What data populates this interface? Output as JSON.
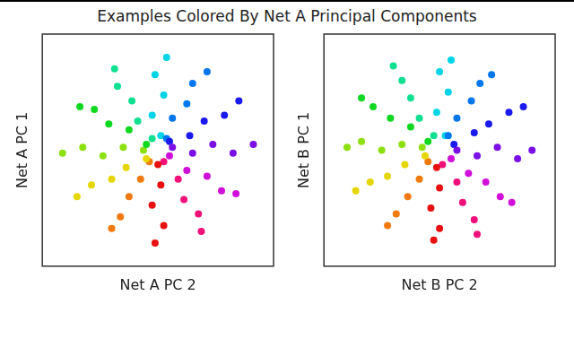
{
  "title": "Examples Colored By Net A Principal Components",
  "chart_data": [
    {
      "type": "scatter",
      "x_label": "Net A PC 2",
      "y_label": "Net A PC 1",
      "xlim": [
        -4,
        4
      ],
      "ylim": [
        -4,
        4
      ],
      "tick_labels": false,
      "grid": false,
      "marker": "circle",
      "x": [
        0.1,
        -0.2,
        0.2,
        -0.1,
        0.3,
        0.3,
        0.5,
        1.0,
        1.2,
        1.7,
        0.4,
        1.1,
        1.6,
        2.3,
        2.8,
        0.5,
        1.2,
        1.9,
        2.6,
        3.3,
        0.4,
        1.0,
        1.7,
        2.2,
        2.7,
        0.2,
        0.7,
        0.9,
        1.4,
        1.5,
        0,
        0.1,
        -0.2,
        0.2,
        -0.1,
        -0.3,
        -0.6,
        -1.0,
        -1.3,
        -1.6,
        -0.4,
        -1.1,
        -1.6,
        -2.3,
        -2.8,
        -0.5,
        -1.2,
        -1.9,
        -2.6,
        -3.3,
        -0.4,
        -1.0,
        -1.7,
        -2.2,
        -2.7,
        -0.2,
        -0.7,
        -0.9,
        -1.4,
        -1.5
      ],
      "values": [
        0.5,
        1.2,
        1.9,
        2.6,
        3.2,
        0.4,
        1.1,
        1.6,
        2.3,
        2.7,
        0.3,
        0.5,
        1.0,
        1.2,
        1.7,
        0.1,
        -0.1,
        0.2,
        -0.1,
        0.2,
        -0.2,
        -0.7,
        -0.9,
        -1.4,
        -1.5,
        -0.4,
        -1.0,
        -1.7,
        -2.2,
        -2.8,
        -0.5,
        -1.2,
        -1.9,
        -2.6,
        -3.2,
        -0.4,
        -1.0,
        -1.6,
        -2.3,
        -2.7,
        -0.3,
        -0.6,
        -1.0,
        -1.2,
        -1.6,
        0,
        0.1,
        -0.2,
        0.1,
        -0.1,
        0.2,
        0.7,
        0.9,
        1.4,
        1.5,
        0.4,
        1.0,
        1.7,
        2.2,
        2.8
      ],
      "colors": [
        "#00d4e6",
        "#00d4e6",
        "#00d4e6",
        "#00d4e6",
        "#00d4e6",
        "#0077ee",
        "#0077ee",
        "#0077ee",
        "#0077ee",
        "#0077ee",
        "#1a1aee",
        "#1a1aee",
        "#1a1aee",
        "#1a1aee",
        "#1a1aee",
        "#7a10e6",
        "#7a10e6",
        "#7a10e6",
        "#7a10e6",
        "#7a10e6",
        "#d010d8",
        "#d010d8",
        "#d010d8",
        "#d010d8",
        "#d010d8",
        "#f0107a",
        "#f0107a",
        "#f0107a",
        "#f0107a",
        "#f0107a",
        "#e81010",
        "#e81010",
        "#e81010",
        "#e81010",
        "#e81010",
        "#f07a10",
        "#f07a10",
        "#f07a10",
        "#f07a10",
        "#f07a10",
        "#e6d600",
        "#e6d600",
        "#e6d600",
        "#e6d600",
        "#e6d600",
        "#8ce010",
        "#8ce010",
        "#8ce010",
        "#8ce010",
        "#8ce010",
        "#10d820",
        "#10d820",
        "#10d820",
        "#10d820",
        "#10d820",
        "#10e090",
        "#10e090",
        "#10e090",
        "#10e090",
        "#10e090"
      ]
    },
    {
      "type": "scatter",
      "x_label": "Net B PC 2",
      "y_label": "Net B PC 1",
      "xlim": [
        -4,
        4
      ],
      "ylim": [
        -4,
        4
      ],
      "tick_labels": false,
      "grid": false,
      "marker": "circle",
      "x": [
        0.2,
        -0.1,
        0.3,
        0.0,
        0.4,
        0.3,
        0.6,
        1.1,
        1.4,
        1.8,
        0.5,
        1.2,
        1.7,
        2.4,
        2.9,
        0.6,
        1.3,
        2.0,
        2.7,
        3.2,
        0.4,
        1.0,
        1.6,
        2.1,
        2.5,
        0.1,
        0.6,
        0.8,
        1.2,
        1.3,
        -0.1,
        0.0,
        -0.3,
        0.0,
        -0.2,
        -0.4,
        -0.7,
        -1.1,
        -1.5,
        -1.8,
        -0.5,
        -1.2,
        -1.8,
        -2.4,
        -2.9,
        -0.6,
        -1.3,
        -2.0,
        -2.7,
        -3.2,
        -0.4,
        -1.0,
        -1.7,
        -2.3,
        -2.7,
        -0.2,
        -0.7,
        -1.0,
        -1.3,
        -1.6
      ],
      "values": [
        0.5,
        1.3,
        2.0,
        2.7,
        3.1,
        0.5,
        1.1,
        1.7,
        2.3,
        2.6,
        0.2,
        0.6,
        0.9,
        1.3,
        1.5,
        0.0,
        -0.2,
        0.1,
        -0.3,
        0.0,
        -0.3,
        -0.8,
        -1.1,
        -1.6,
        -1.8,
        -0.5,
        -1.1,
        -1.8,
        -2.4,
        -2.9,
        -0.6,
        -1.3,
        -2.0,
        -2.7,
        -3.1,
        -0.4,
        -1.0,
        -1.6,
        -2.2,
        -2.6,
        -0.2,
        -0.5,
        -0.9,
        -1.1,
        -1.4,
        0.1,
        0.2,
        0.0,
        0.3,
        0.1,
        0.3,
        0.8,
        1.1,
        1.5,
        1.8,
        0.5,
        1.1,
        1.8,
        2.4,
        2.9
      ],
      "colors": [
        "#00d4e6",
        "#00d4e6",
        "#00d4e6",
        "#00d4e6",
        "#00d4e6",
        "#0077ee",
        "#0077ee",
        "#0077ee",
        "#0077ee",
        "#0077ee",
        "#1a1aee",
        "#1a1aee",
        "#1a1aee",
        "#1a1aee",
        "#1a1aee",
        "#7a10e6",
        "#7a10e6",
        "#7a10e6",
        "#7a10e6",
        "#7a10e6",
        "#d010d8",
        "#d010d8",
        "#d010d8",
        "#d010d8",
        "#d010d8",
        "#f0107a",
        "#f0107a",
        "#f0107a",
        "#f0107a",
        "#f0107a",
        "#e81010",
        "#e81010",
        "#e81010",
        "#e81010",
        "#e81010",
        "#f07a10",
        "#f07a10",
        "#f07a10",
        "#f07a10",
        "#f07a10",
        "#e6d600",
        "#e6d600",
        "#e6d600",
        "#e6d600",
        "#e6d600",
        "#8ce010",
        "#8ce010",
        "#8ce010",
        "#8ce010",
        "#8ce010",
        "#10d820",
        "#10d820",
        "#10d820",
        "#10d820",
        "#10d820",
        "#10e090",
        "#10e090",
        "#10e090",
        "#10e090",
        "#10e090"
      ]
    }
  ]
}
